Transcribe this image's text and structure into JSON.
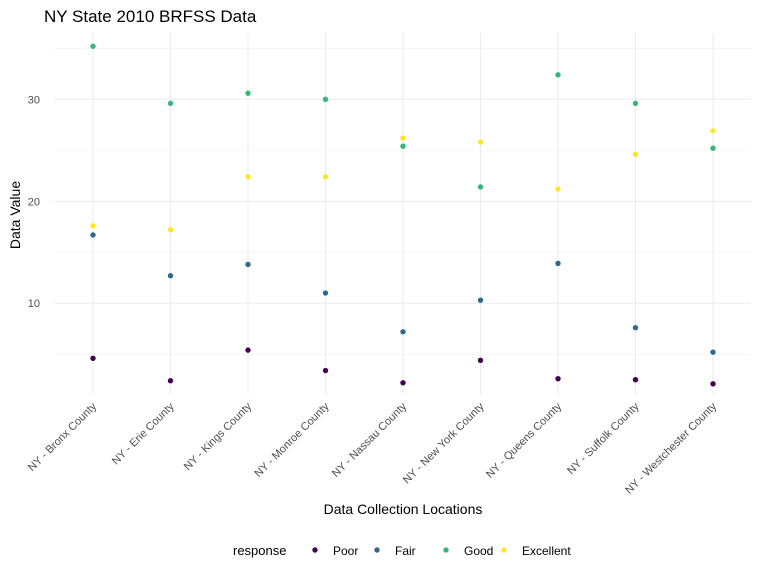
{
  "chart_data": {
    "type": "scatter",
    "title": "NY State 2010 BRFSS Data",
    "xlabel": "Data Collection Locations",
    "ylabel": "Data Value",
    "categories": [
      "NY - Bronx County",
      "NY - Erie County",
      "NY - Kings County",
      "NY - Monroe County",
      "NY - Nassau County",
      "NY - New York County",
      "NY - Queens County",
      "NY - Suffolk County",
      "NY - Westchester County"
    ],
    "y_ticks": [
      10,
      20,
      30
    ],
    "ylim": [
      1.0,
      36.5
    ],
    "grid": true,
    "legend": {
      "title": "response",
      "position": "bottom"
    },
    "series": [
      {
        "name": "Poor",
        "color": "#440154",
        "values": [
          4.6,
          2.4,
          5.4,
          3.4,
          2.2,
          4.4,
          2.6,
          2.5,
          2.1
        ]
      },
      {
        "name": "Fair",
        "color": "#31688E",
        "values": [
          16.7,
          12.7,
          13.8,
          11.0,
          7.2,
          10.3,
          13.9,
          7.6,
          5.2
        ]
      },
      {
        "name": "Good",
        "color": "#35B779",
        "values": [
          35.2,
          29.6,
          30.6,
          30.0,
          25.4,
          21.4,
          32.4,
          29.6,
          25.2
        ]
      },
      {
        "name": "Excellent",
        "color": "#FDE725",
        "values": [
          17.6,
          17.2,
          22.4,
          22.4,
          26.2,
          25.8,
          21.2,
          24.6,
          26.9
        ]
      }
    ]
  }
}
